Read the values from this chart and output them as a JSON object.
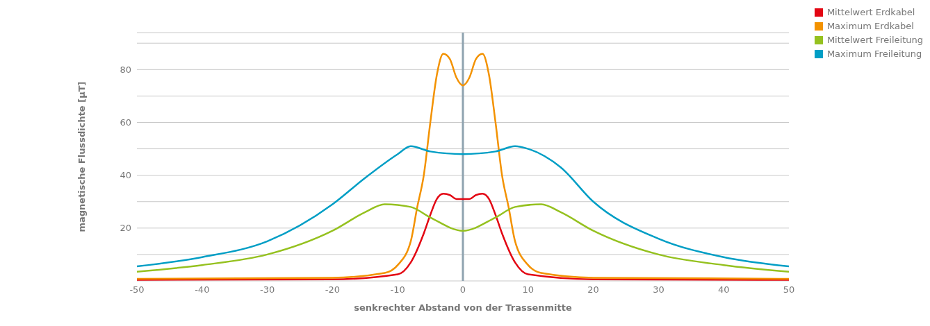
{
  "chart_data": {
    "type": "line",
    "xlabel": "senkrechter Abstand von der Trassenmitte",
    "ylabel": "magnetische Flussdichte [µT]",
    "xlim": [
      -50,
      50
    ],
    "xticks": [
      -50,
      -40,
      -30,
      -20,
      -10,
      0,
      10,
      20,
      30,
      40,
      50
    ],
    "ylim": [
      0,
      94
    ],
    "yticks": [
      {
        "value": 10,
        "label": null
      },
      20,
      {
        "value": 30,
        "label": null
      },
      40,
      {
        "value": 50,
        "label": null
      },
      60,
      {
        "value": 70,
        "label": null
      },
      80,
      {
        "value": 90,
        "label": null
      }
    ],
    "grid": "y",
    "legend": "top right",
    "marker": "none",
    "line_style": "solid",
    "ref_lines": [
      {
        "axis": "x",
        "value": 0,
        "label": null,
        "color": "#8fa3b0"
      }
    ],
    "series": [
      {
        "name": "Mittelwert Erdkabel",
        "color": "#e30613",
        "x": [
          -50,
          -20,
          -10,
          -8,
          -6,
          -5,
          -4,
          -3,
          -2,
          -1,
          0,
          1,
          2,
          3,
          4,
          5,
          6,
          8,
          10,
          20,
          50
        ],
        "values": [
          0.4,
          0.6,
          2.5,
          7,
          18,
          25,
          31,
          33,
          32.5,
          31,
          31,
          31,
          32.5,
          33,
          31,
          25,
          18,
          7,
          2.5,
          0.6,
          0.4
        ]
      },
      {
        "name": "Maximum Erdkabel",
        "color": "#f39200",
        "x": [
          -50,
          -20,
          -12,
          -10,
          -8,
          -7,
          -6,
          -5,
          -4,
          -3,
          -2,
          -1,
          0,
          1,
          2,
          3,
          4,
          5,
          6,
          7,
          8,
          10,
          12,
          20,
          50
        ],
        "values": [
          0.8,
          1.2,
          3,
          6,
          15,
          28,
          40,
          60,
          78,
          86,
          84,
          77,
          74,
          77,
          84,
          86,
          78,
          60,
          40,
          28,
          15,
          6,
          3,
          1.2,
          0.8
        ]
      },
      {
        "name": "Mittelwert Freileitung",
        "color": "#95c11f",
        "x": [
          -50,
          -40,
          -30,
          -20,
          -15,
          -12,
          -8,
          -5,
          0,
          5,
          8,
          12,
          15,
          20,
          30,
          40,
          50
        ],
        "values": [
          3.5,
          6,
          10,
          19,
          26,
          29,
          28,
          24,
          19,
          24,
          28,
          29,
          26,
          19,
          10,
          6,
          3.5
        ]
      },
      {
        "name": "Maximum Freileitung",
        "color": "#009ec5",
        "x": [
          -50,
          -40,
          -30,
          -20,
          -15,
          -10,
          -8,
          -5,
          0,
          5,
          8,
          10,
          15,
          20,
          30,
          40,
          50
        ],
        "values": [
          5.5,
          9,
          15,
          29,
          39,
          48,
          51,
          49,
          48,
          49,
          51,
          50,
          43,
          30,
          16,
          9,
          5.5
        ]
      }
    ]
  }
}
